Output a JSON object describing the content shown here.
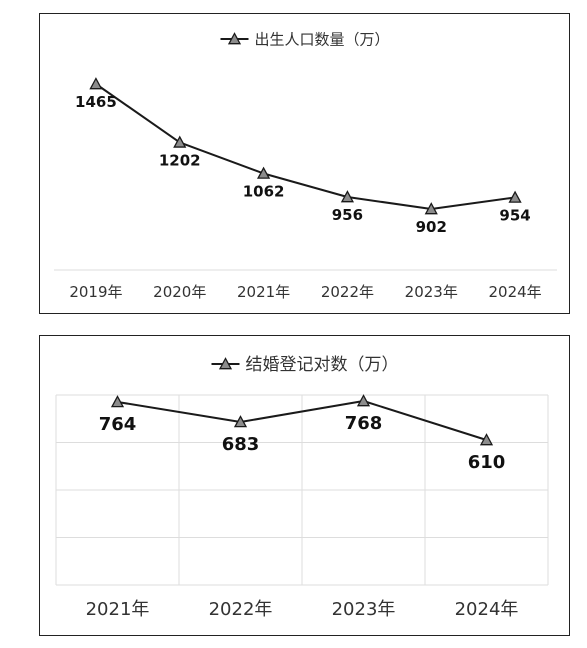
{
  "chart_data": [
    {
      "type": "line",
      "categories": [
        "2019年",
        "2020年",
        "2021年",
        "2022年",
        "2023年",
        "2024年"
      ],
      "series": [
        {
          "name": "出生人口数量（万）",
          "values": [
            1465,
            1202,
            1062,
            956,
            902,
            954
          ]
        }
      ],
      "data_labels": [
        "1465",
        "1202",
        "1062",
        "956",
        "902",
        "954"
      ],
      "grid": false,
      "legend": "top",
      "marker": "triangle"
    },
    {
      "type": "line",
      "categories": [
        "2021年",
        "2022年",
        "2023年",
        "2024年"
      ],
      "series": [
        {
          "name": "结婚登记对数（万）",
          "values": [
            764,
            683,
            768,
            610
          ]
        }
      ],
      "data_labels": [
        "764",
        "683",
        "768",
        "610"
      ],
      "grid": true,
      "legend": "top",
      "marker": "triangle"
    }
  ],
  "colors": {
    "line": "#1a1a1a",
    "marker_fill": "#8c8c8c",
    "grid": "#dddddd",
    "border": "#222222"
  }
}
